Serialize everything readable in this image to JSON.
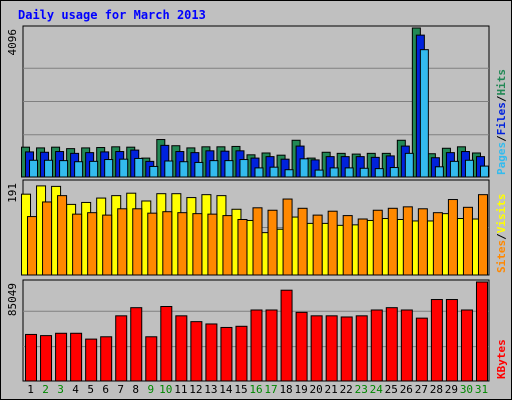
{
  "chart_data": [
    {
      "type": "bar",
      "title": "Daily usage for March 2013",
      "categories": [
        "1",
        "2",
        "3",
        "4",
        "5",
        "6",
        "7",
        "8",
        "9",
        "10",
        "11",
        "12",
        "13",
        "14",
        "15",
        "16",
        "17",
        "18",
        "19",
        "20",
        "21",
        "22",
        "23",
        "24",
        "25",
        "26",
        "27",
        "28",
        "29",
        "30",
        "31"
      ],
      "weekend_days": [
        "2",
        "3",
        "9",
        "10",
        "16",
        "17",
        "23",
        "24",
        "30",
        "31"
      ],
      "ylabel_max": "4096",
      "ylim": [
        0,
        4096
      ],
      "legend": [
        "Pages",
        "/",
        "Files",
        "/",
        "Hits"
      ],
      "colors": {
        "Hits": "#228855",
        "Files": "#0022DD",
        "Pages": "#33BBEE"
      },
      "series": [
        {
          "name": "Hits",
          "values": [
            820,
            800,
            820,
            780,
            800,
            810,
            830,
            820,
            520,
            1030,
            860,
            800,
            830,
            830,
            840,
            610,
            660,
            600,
            1010,
            520,
            680,
            650,
            630,
            650,
            650,
            1010,
            4096,
            640,
            790,
            830,
            660
          ]
        },
        {
          "name": "Files",
          "values": [
            690,
            680,
            700,
            650,
            670,
            690,
            700,
            740,
            430,
            870,
            700,
            670,
            720,
            710,
            720,
            520,
            560,
            490,
            850,
            470,
            560,
            560,
            560,
            540,
            580,
            850,
            3900,
            530,
            670,
            700,
            560
          ]
        },
        {
          "name": "Pages",
          "values": [
            460,
            460,
            450,
            420,
            430,
            480,
            490,
            510,
            290,
            440,
            420,
            400,
            450,
            450,
            480,
            250,
            270,
            200,
            500,
            190,
            250,
            250,
            240,
            230,
            260,
            650,
            3500,
            280,
            430,
            460,
            300
          ]
        }
      ]
    },
    {
      "type": "bar",
      "categories": [
        "1",
        "2",
        "3",
        "4",
        "5",
        "6",
        "7",
        "8",
        "9",
        "10",
        "11",
        "12",
        "13",
        "14",
        "15",
        "16",
        "17",
        "18",
        "19",
        "20",
        "21",
        "22",
        "23",
        "24",
        "25",
        "26",
        "27",
        "28",
        "29",
        "30",
        "31"
      ],
      "ylabel_max": "191",
      "ylim": [
        0,
        191
      ],
      "legend": [
        "Sites",
        "/",
        "Visits"
      ],
      "colors": {
        "Visits": "#FFFF00",
        "Sites": "#FF8800"
      },
      "series": [
        {
          "name": "Visits",
          "values": [
            166,
            183,
            182,
            145,
            149,
            158,
            163,
            168,
            152,
            167,
            167,
            159,
            165,
            163,
            135,
            112,
            87,
            94,
            119,
            106,
            106,
            102,
            103,
            112,
            116,
            114,
            111,
            111,
            126,
            116,
            115
          ]
        },
        {
          "name": "Sites",
          "values": [
            120,
            150,
            163,
            125,
            128,
            123,
            136,
            136,
            127,
            130,
            128,
            126,
            125,
            122,
            114,
            138,
            133,
            156,
            137,
            123,
            131,
            122,
            115,
            133,
            137,
            140,
            136,
            128,
            155,
            139,
            165
          ]
        }
      ]
    },
    {
      "type": "bar",
      "categories": [
        "1",
        "2",
        "3",
        "4",
        "5",
        "6",
        "7",
        "8",
        "9",
        "10",
        "11",
        "12",
        "13",
        "14",
        "15",
        "16",
        "17",
        "18",
        "19",
        "20",
        "21",
        "22",
        "23",
        "24",
        "25",
        "26",
        "27",
        "28",
        "29",
        "30",
        "31"
      ],
      "ylabel_max": "85049",
      "ylim": [
        0,
        85049
      ],
      "legend": [
        "KBytes"
      ],
      "colors": {
        "KBytes": "#FF0000"
      },
      "series": [
        {
          "name": "KBytes",
          "values": [
            40000,
            39000,
            41000,
            41000,
            36000,
            38000,
            56000,
            63000,
            38000,
            64000,
            56000,
            51000,
            49000,
            46000,
            47000,
            61000,
            61000,
            78000,
            59000,
            56000,
            56000,
            55000,
            56000,
            61000,
            63000,
            61000,
            54000,
            70000,
            70000,
            61000,
            86000
          ]
        }
      ]
    }
  ]
}
